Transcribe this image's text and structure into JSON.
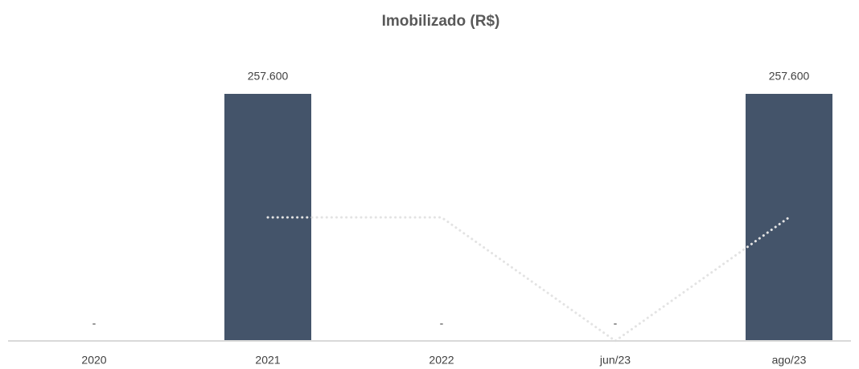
{
  "chart_data": {
    "type": "bar",
    "title": "Imobilizado (R$)",
    "categories": [
      "2020",
      "2021",
      "2022",
      "jun/23",
      "ago/23"
    ],
    "ylim": [
      0,
      257600
    ],
    "series": [
      {
        "type": "bar",
        "color": "#44546a",
        "values": [
          0,
          257600,
          0,
          0,
          257600
        ],
        "value_labels": [
          "-",
          "257.600",
          "-",
          "-",
          "257.600"
        ]
      },
      {
        "type": "line",
        "color": "#e3e3e3",
        "values": [
          null,
          128800,
          128800,
          0,
          128800
        ]
      }
    ]
  }
}
